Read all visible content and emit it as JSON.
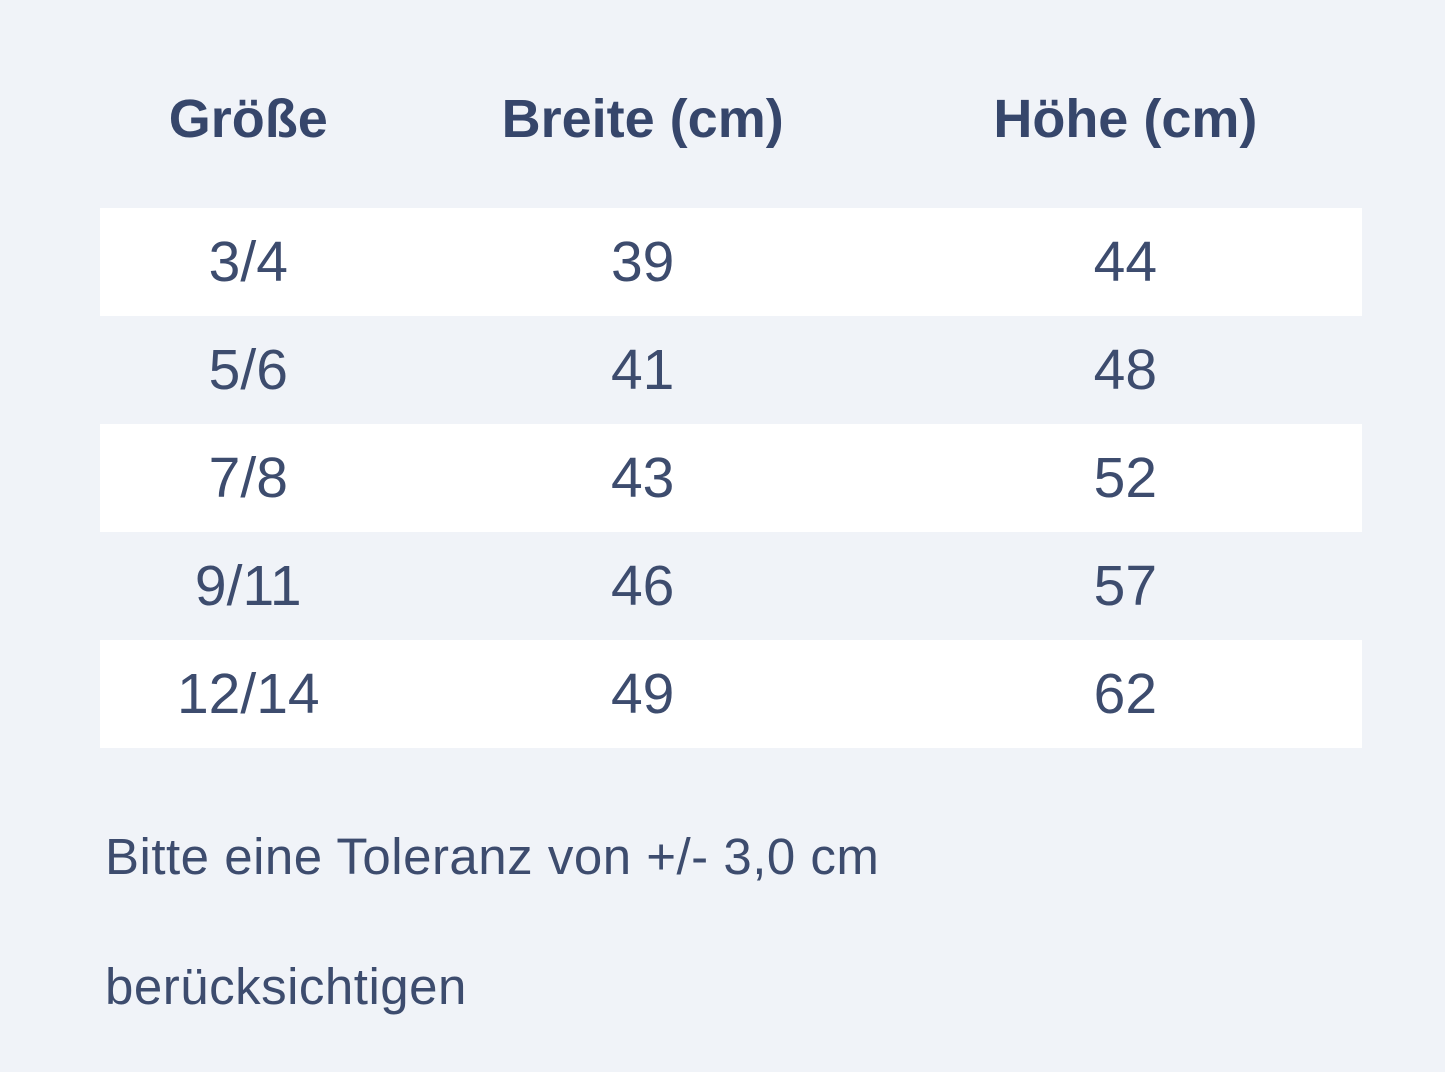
{
  "theme": {
    "page_bg": "#f0f3f8",
    "row_alt_bg": "#ffffff",
    "header_text": "#36466b",
    "body_text": "#3d4c6e"
  },
  "size_table": {
    "columns": [
      "Größe",
      "Breite (cm)",
      "Höhe (cm)"
    ],
    "rows": [
      {
        "size": "3/4",
        "breite": "39",
        "hoehe": "44"
      },
      {
        "size": "5/6",
        "breite": "41",
        "hoehe": "48"
      },
      {
        "size": "7/8",
        "breite": "43",
        "hoehe": "52"
      },
      {
        "size": "9/11",
        "breite": "46",
        "hoehe": "57"
      },
      {
        "size": "12/14",
        "breite": "49",
        "hoehe": "62"
      }
    ]
  },
  "note": {
    "line1": "Bitte eine Toleranz von +/- 3,0 cm",
    "line2": "berücksichtigen"
  },
  "chart_data": {
    "type": "table",
    "columns": [
      "Größe",
      "Breite (cm)",
      "Höhe (cm)"
    ],
    "rows": [
      [
        "3/4",
        39,
        44
      ],
      [
        "5/6",
        41,
        48
      ],
      [
        "7/8",
        43,
        52
      ],
      [
        "9/11",
        46,
        57
      ],
      [
        "12/14",
        49,
        62
      ]
    ],
    "note": "Bitte eine Toleranz von +/- 3,0 cm berücksichtigen"
  }
}
